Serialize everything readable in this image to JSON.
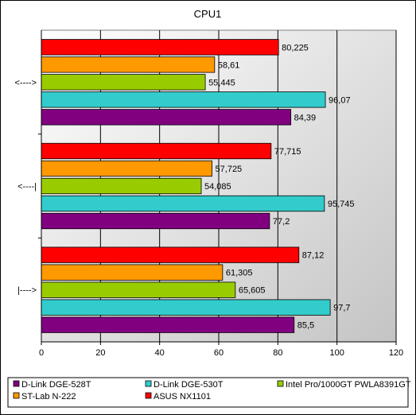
{
  "chart_data": {
    "type": "bar",
    "orientation": "horizontal",
    "title": "CPU1",
    "categories": [
      "<---->",
      "<----|",
      "|---->"
    ],
    "xlim": [
      0,
      120
    ],
    "xticks": [
      0,
      20,
      40,
      60,
      80,
      100,
      120
    ],
    "grid": "vertical",
    "legend_position": "bottom",
    "series": [
      {
        "name": "D-Link DGE-528T",
        "color": "#800080",
        "values": [
          84.39,
          77.2,
          85.5
        ],
        "labels": [
          "84,39",
          "77,2",
          "85,5"
        ]
      },
      {
        "name": "D-Link DGE-530T",
        "color": "#33cccc",
        "values": [
          96.07,
          95.745,
          97.7
        ],
        "labels": [
          "96,07",
          "95,745",
          "97,7"
        ]
      },
      {
        "name": "Intel Pro/1000GT PWLA8391GT",
        "color": "#99cc00",
        "values": [
          55.445,
          54.085,
          65.605
        ],
        "labels": [
          "55,445",
          "54,085",
          "65,605"
        ]
      },
      {
        "name": "ST-Lab N-222",
        "color": "#ff9900",
        "values": [
          58.61,
          57.725,
          61.305
        ],
        "labels": [
          "58,61",
          "57,725",
          "61,305"
        ]
      },
      {
        "name": "ASUS NX1101",
        "color": "#ff0000",
        "values": [
          80.225,
          77.715,
          87.12
        ],
        "labels": [
          "80,225",
          "77,715",
          "87,12"
        ]
      }
    ],
    "background_colors": {
      "plot_area": "#c0c0c0",
      "page": "#ffffff"
    }
  }
}
